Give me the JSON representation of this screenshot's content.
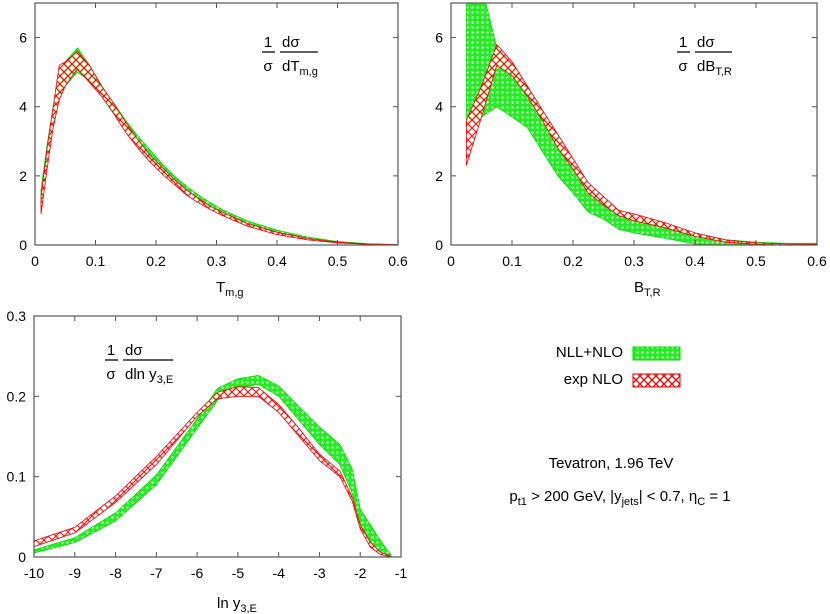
{
  "colors": {
    "nll_nlo": "#00dd00",
    "exp_nlo": "#ee0000",
    "frame": "#555555"
  },
  "legend": {
    "placement": "right-middle",
    "entries": [
      {
        "label": "NLL+NLO",
        "color": "#00dd00",
        "pattern": "dots"
      },
      {
        "label": "exp NLO",
        "color": "#ee0000",
        "pattern": "crosshatch"
      }
    ]
  },
  "annotation": {
    "line1": "Tevatron, 1.96 TeV",
    "line2": [
      {
        "t": "p"
      },
      {
        "t": "t1",
        "sub": true
      },
      {
        "t": " > 200 GeV, |y"
      },
      {
        "t": "jets",
        "sub": true
      },
      {
        "t": "| < 0.7, η"
      },
      {
        "t": "C",
        "sub": true
      },
      {
        "t": " = 1"
      }
    ]
  },
  "chart_data": [
    {
      "type": "area",
      "xlabel": {
        "main": "T",
        "sub": "m,g"
      },
      "ylabel": {
        "n1": "1",
        "d1": "σ",
        "n2": "dσ",
        "d2": "dT",
        "d2sub": "m,g"
      },
      "xlim": [
        0,
        0.6
      ],
      "ylim": [
        0,
        7
      ],
      "xticks": [
        "0",
        "0.1",
        "0.2",
        "0.3",
        "0.4",
        "0.5",
        "0.6"
      ],
      "xtick_values": [
        0,
        0.1,
        0.2,
        0.3,
        0.4,
        0.5,
        0.6
      ],
      "yticks": [
        "0",
        "2",
        "4",
        "6"
      ],
      "ytick_values": [
        0,
        2,
        4,
        6
      ],
      "series": [
        {
          "name": "NLL+NLO",
          "x": [
            0.01,
            0.02,
            0.03,
            0.04,
            0.05,
            0.07,
            0.09,
            0.11,
            0.13,
            0.15,
            0.17,
            0.19,
            0.21,
            0.23,
            0.25,
            0.27,
            0.29,
            0.31,
            0.35,
            0.4,
            0.45,
            0.5,
            0.55,
            0.6
          ],
          "lower": [
            1.1,
            2.4,
            3.5,
            4.2,
            4.6,
            5.0,
            4.75,
            4.3,
            3.8,
            3.3,
            2.9,
            2.5,
            2.15,
            1.85,
            1.55,
            1.3,
            1.1,
            0.9,
            0.6,
            0.35,
            0.18,
            0.08,
            0.02,
            0
          ],
          "upper": [
            1.6,
            2.9,
            4.0,
            4.8,
            5.3,
            5.7,
            5.2,
            4.6,
            4.1,
            3.6,
            3.15,
            2.75,
            2.35,
            2.0,
            1.7,
            1.45,
            1.22,
            1.02,
            0.7,
            0.43,
            0.23,
            0.1,
            0.04,
            0.01
          ]
        },
        {
          "name": "exp NLO",
          "x": [
            0.01,
            0.02,
            0.03,
            0.04,
            0.05,
            0.07,
            0.09,
            0.11,
            0.13,
            0.15,
            0.17,
            0.19,
            0.21,
            0.23,
            0.25,
            0.27,
            0.29,
            0.31,
            0.35,
            0.4,
            0.45,
            0.5,
            0.55,
            0.6
          ],
          "lower": [
            0.9,
            2.2,
            3.4,
            4.2,
            4.6,
            5.1,
            4.7,
            4.3,
            3.8,
            3.25,
            2.8,
            2.4,
            2.05,
            1.75,
            1.45,
            1.22,
            1.02,
            0.85,
            0.55,
            0.3,
            0.15,
            0.06,
            0.02,
            0
          ],
          "upper": [
            1.4,
            2.8,
            4.0,
            5.2,
            5.3,
            5.6,
            5.2,
            4.6,
            4.1,
            3.55,
            3.05,
            2.6,
            2.25,
            1.9,
            1.6,
            1.35,
            1.12,
            0.95,
            0.63,
            0.37,
            0.19,
            0.08,
            0.03,
            0.01
          ]
        }
      ]
    },
    {
      "type": "area",
      "xlabel": {
        "main": "B",
        "sub": "T,R"
      },
      "ylabel": {
        "n1": "1",
        "d1": "σ",
        "n2": "dσ",
        "d2": "dB",
        "d2sub": "T,R"
      },
      "xlim": [
        0,
        0.6
      ],
      "ylim": [
        0,
        7
      ],
      "xticks": [
        "0",
        "0.1",
        "0.2",
        "0.3",
        "0.4",
        "0.5",
        "0.6"
      ],
      "xtick_values": [
        0,
        0.1,
        0.2,
        0.3,
        0.4,
        0.5,
        0.6
      ],
      "yticks": [
        "0",
        "2",
        "4",
        "6"
      ],
      "ytick_values": [
        0,
        2,
        4,
        6
      ],
      "series": [
        {
          "name": "NLL+NLO",
          "x": [
            0.025,
            0.05,
            0.075,
            0.1,
            0.125,
            0.15,
            0.175,
            0.2,
            0.225,
            0.25,
            0.275,
            0.3,
            0.35,
            0.4,
            0.45,
            0.5,
            0.55,
            0.6
          ],
          "lower": [
            3.4,
            3.7,
            4.0,
            3.7,
            3.4,
            2.7,
            2.0,
            1.5,
            0.95,
            0.75,
            0.45,
            0.35,
            0.2,
            0.03,
            0,
            0,
            0,
            0
          ],
          "upper": [
            7.5,
            7.5,
            5.7,
            5.2,
            4.6,
            3.8,
            3.0,
            2.3,
            1.6,
            1.3,
            0.9,
            0.8,
            0.6,
            0.3,
            0.15,
            0.08,
            0.05,
            0.05
          ]
        },
        {
          "name": "exp NLO",
          "x": [
            0.025,
            0.05,
            0.075,
            0.1,
            0.125,
            0.15,
            0.175,
            0.2,
            0.225,
            0.25,
            0.275,
            0.3,
            0.35,
            0.4,
            0.45,
            0.5,
            0.55,
            0.6
          ],
          "lower": [
            2.3,
            3.7,
            5.2,
            4.9,
            4.3,
            3.6,
            2.8,
            2.2,
            1.5,
            1.15,
            0.85,
            0.7,
            0.5,
            0.25,
            0.08,
            0.02,
            0,
            0
          ],
          "upper": [
            3.6,
            4.6,
            5.8,
            5.3,
            4.6,
            3.9,
            3.2,
            2.5,
            1.8,
            1.4,
            1.0,
            0.9,
            0.65,
            0.35,
            0.15,
            0.06,
            0.03,
            0.02
          ]
        }
      ]
    },
    {
      "type": "area",
      "xlabel": {
        "main": "ln y",
        "sub": "3,E"
      },
      "ylabel": {
        "n1": "1",
        "d1": "σ",
        "n2": "dσ",
        "d2": "dln y",
        "d2sub": "3,E"
      },
      "xlim": [
        -10,
        -1
      ],
      "ylim": [
        0,
        0.3
      ],
      "xticks": [
        "-10",
        "-9",
        "-8",
        "-7",
        "-6",
        "-5",
        "-4",
        "-3",
        "-2",
        "-1"
      ],
      "xtick_values": [
        -10,
        -9,
        -8,
        -7,
        -6,
        -5,
        -4,
        -3,
        -2,
        -1
      ],
      "yticks": [
        "0",
        "0.1",
        "0.2",
        "0.3"
      ],
      "ytick_values": [
        0,
        0.1,
        0.2,
        0.3
      ],
      "series": [
        {
          "name": "NLL+NLO",
          "x": [
            -10,
            -9,
            -8,
            -7,
            -6,
            -5.5,
            -5,
            -4.5,
            -4,
            -3.5,
            -3,
            -2.5,
            -2.2,
            -2,
            -1.75,
            -1.5,
            -1.25
          ],
          "lower": [
            0.005,
            0.018,
            0.045,
            0.09,
            0.16,
            0.195,
            0.21,
            0.215,
            0.2,
            0.17,
            0.14,
            0.115,
            0.08,
            0.04,
            0.02,
            0.005,
            0
          ],
          "upper": [
            0.009,
            0.024,
            0.055,
            0.102,
            0.172,
            0.21,
            0.222,
            0.226,
            0.213,
            0.187,
            0.162,
            0.14,
            0.11,
            0.06,
            0.04,
            0.02,
            0.003
          ]
        },
        {
          "name": "exp NLO",
          "x": [
            -10,
            -9,
            -8,
            -7,
            -6,
            -5.5,
            -5,
            -4.5,
            -4,
            -3.5,
            -3,
            -2.5,
            -2.2,
            -2,
            -1.75,
            -1.5,
            -1.25
          ],
          "lower": [
            0.013,
            0.03,
            0.068,
            0.115,
            0.175,
            0.197,
            0.2,
            0.2,
            0.18,
            0.15,
            0.12,
            0.1,
            0.07,
            0.035,
            0.012,
            0.003,
            0
          ],
          "upper": [
            0.02,
            0.037,
            0.076,
            0.125,
            0.18,
            0.205,
            0.212,
            0.211,
            0.19,
            0.16,
            0.128,
            0.107,
            0.075,
            0.04,
            0.018,
            0.006,
            0.001
          ]
        }
      ]
    }
  ]
}
